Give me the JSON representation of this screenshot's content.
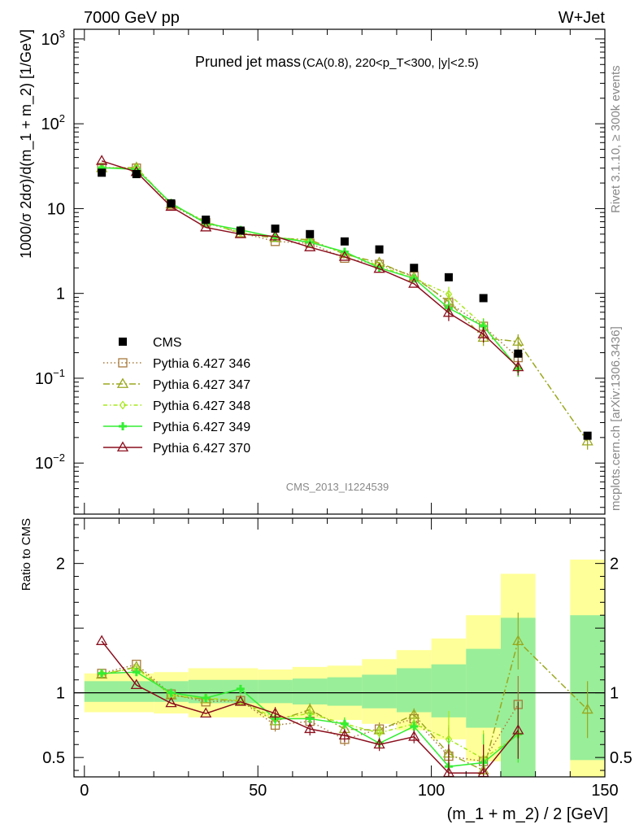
{
  "header": {
    "left": "7000 GeV pp",
    "right": "W+Jet"
  },
  "side_labels": {
    "rivet": "Rivet 3.1.10, ≥ 300k events",
    "mcplots": "mcplots.cern.ch [arXiv:1306.3436]"
  },
  "analysis_id": "CMS_2013_I1224539",
  "chart_data": [
    {
      "type": "line",
      "panel": "main",
      "title": "Pruned jet mass",
      "subtitle": "(CA(0.8), 220<p_T<300, |y|<2.5)",
      "ylabel": "1000/σ 2dσ)/d(m_1 + m_2) [1/GeV]",
      "yscale": "log",
      "ylim": [
        0.0025,
        1300
      ],
      "xlim": [
        -3,
        150
      ],
      "yticks": [
        {
          "value": 1000,
          "base": "10",
          "exp": "3"
        },
        {
          "value": 100,
          "base": "10",
          "exp": "2"
        },
        {
          "value": 10,
          "label": "10"
        },
        {
          "value": 1,
          "label": "1"
        },
        {
          "value": 0.1,
          "base": "10",
          "exp": "−1"
        },
        {
          "value": 0.01,
          "base": "10",
          "exp": "−2"
        }
      ],
      "x": [
        5,
        15,
        25,
        35,
        45,
        55,
        65,
        75,
        85,
        95,
        105,
        115,
        125,
        145
      ],
      "data": {
        "name": "CMS",
        "values": [
          26.5,
          25.5,
          11.5,
          7.4,
          5.5,
          5.8,
          5.0,
          4.1,
          3.3,
          2.0,
          1.55,
          0.88,
          0.195,
          0.021
        ]
      },
      "series": [
        {
          "name": "Pythia 6.427 346",
          "color": "#a87a3c",
          "marker": "square-open",
          "dash": "1.5,3",
          "values": [
            30.5,
            30.0,
            11.0,
            6.8,
            5.2,
            4.1,
            3.9,
            2.6,
            2.2,
            1.6,
            0.78,
            0.41,
            0.175,
            null
          ]
        },
        {
          "name": "Pythia 6.427 347",
          "color": "#9aa81e",
          "marker": "triangle-open",
          "dash": "8,3,2,3",
          "values": [
            30.0,
            30.5,
            11.2,
            7.0,
            5.1,
            4.5,
            4.3,
            2.9,
            2.3,
            1.55,
            0.8,
            0.3,
            0.27,
            0.018
          ]
        },
        {
          "name": "Pythia 6.427 348",
          "color": "#a8e81e",
          "marker": "diamond-open",
          "dash": "5,3,1.5,3",
          "values": [
            30.2,
            30.0,
            11.3,
            6.9,
            5.2,
            4.6,
            4.1,
            3.0,
            2.1,
            1.5,
            0.98,
            0.42,
            0.13,
            null
          ]
        },
        {
          "name": "Pythia 6.427 349",
          "color": "#33ee33",
          "marker": "cross",
          "dash": "",
          "values": [
            30.3,
            29.0,
            11.6,
            6.7,
            5.6,
            4.6,
            4.0,
            3.1,
            2.0,
            1.5,
            0.67,
            0.41,
            0.13,
            null
          ]
        },
        {
          "name": "Pythia 6.427 370",
          "color": "#8b0f1e",
          "marker": "triangle-open",
          "dash": "",
          "values": [
            36.5,
            27.0,
            10.5,
            6.0,
            5.0,
            4.7,
            3.5,
            2.7,
            1.95,
            1.3,
            0.59,
            0.33,
            0.135,
            null
          ]
        }
      ]
    },
    {
      "type": "line",
      "panel": "ratio",
      "ylabel": "Ratio to CMS",
      "xlabel": "(m_1 + m_2) / 2 [GeV]",
      "ylim": [
        0.35,
        2.35
      ],
      "xlim": [
        -3,
        150
      ],
      "xticks": [
        0,
        50,
        100,
        150
      ],
      "yticks": [
        0.5,
        1,
        2
      ],
      "bins": [
        {
          "lo": 0,
          "hi": 10,
          "band1": [
            0.93,
            1.09
          ],
          "band2": [
            0.85,
            1.15
          ]
        },
        {
          "lo": 10,
          "hi": 20,
          "band1": [
            0.93,
            1.09
          ],
          "band2": [
            0.85,
            1.15
          ]
        },
        {
          "lo": 20,
          "hi": 30,
          "band1": [
            0.93,
            1.09
          ],
          "band2": [
            0.84,
            1.16
          ]
        },
        {
          "lo": 30,
          "hi": 40,
          "band1": [
            0.92,
            1.1
          ],
          "band2": [
            0.81,
            1.19
          ]
        },
        {
          "lo": 40,
          "hi": 50,
          "band1": [
            0.92,
            1.1
          ],
          "band2": [
            0.81,
            1.19
          ]
        },
        {
          "lo": 50,
          "hi": 60,
          "band1": [
            0.92,
            1.1
          ],
          "band2": [
            0.81,
            1.18
          ]
        },
        {
          "lo": 60,
          "hi": 70,
          "band1": [
            0.91,
            1.11
          ],
          "band2": [
            0.8,
            1.2
          ]
        },
        {
          "lo": 70,
          "hi": 80,
          "band1": [
            0.9,
            1.12
          ],
          "band2": [
            0.79,
            1.21
          ]
        },
        {
          "lo": 80,
          "hi": 90,
          "band1": [
            0.88,
            1.14
          ],
          "band2": [
            0.76,
            1.26
          ]
        },
        {
          "lo": 90,
          "hi": 100,
          "band1": [
            0.85,
            1.19
          ],
          "band2": [
            0.71,
            1.33
          ]
        },
        {
          "lo": 100,
          "hi": 110,
          "band1": [
            0.81,
            1.22
          ],
          "band2": [
            0.64,
            1.42
          ]
        },
        {
          "lo": 110,
          "hi": 120,
          "band1": [
            0.73,
            1.34
          ],
          "band2": [
            0.47,
            1.6
          ]
        },
        {
          "lo": 120,
          "hi": 130,
          "band1": [
            0.35,
            1.58
          ],
          "band2": [
            0.35,
            1.92
          ]
        },
        {
          "lo": 140,
          "hi": 150,
          "band1": [
            0.48,
            1.6
          ],
          "band2": [
            0.35,
            2.03
          ]
        }
      ],
      "x": [
        5,
        15,
        25,
        35,
        45,
        55,
        65,
        75,
        85,
        95,
        105,
        115,
        125,
        145
      ],
      "series": [
        {
          "name": "Pythia 6.427 346",
          "values": [
            1.15,
            1.22,
            0.99,
            0.93,
            0.94,
            0.75,
            0.78,
            0.64,
            0.72,
            0.8,
            0.51,
            0.47,
            0.91,
            null
          ]
        },
        {
          "name": "Pythia 6.427 347",
          "values": [
            1.14,
            1.2,
            0.98,
            0.95,
            0.94,
            0.78,
            0.87,
            0.72,
            0.71,
            0.83,
            0.53,
            0.4,
            1.4,
            0.87
          ]
        },
        {
          "name": "Pythia 6.427 348",
          "values": [
            1.15,
            1.19,
            0.98,
            0.96,
            0.94,
            0.8,
            0.84,
            0.76,
            0.69,
            0.76,
            0.64,
            0.49,
            0.68,
            null
          ]
        },
        {
          "name": "Pythia 6.427 349",
          "values": [
            1.15,
            1.16,
            1.0,
            0.96,
            1.03,
            0.8,
            0.8,
            0.76,
            0.61,
            0.74,
            0.43,
            0.46,
            0.68,
            null
          ]
        },
        {
          "name": "Pythia 6.427 370",
          "values": [
            1.4,
            1.06,
            0.92,
            0.84,
            0.93,
            0.84,
            0.72,
            0.67,
            0.6,
            0.66,
            0.38,
            0.38,
            0.71,
            null
          ]
        }
      ]
    }
  ],
  "colors": {
    "band_inner": "#99ee99",
    "band_outer": "#ffff99",
    "axis": "#000000"
  }
}
